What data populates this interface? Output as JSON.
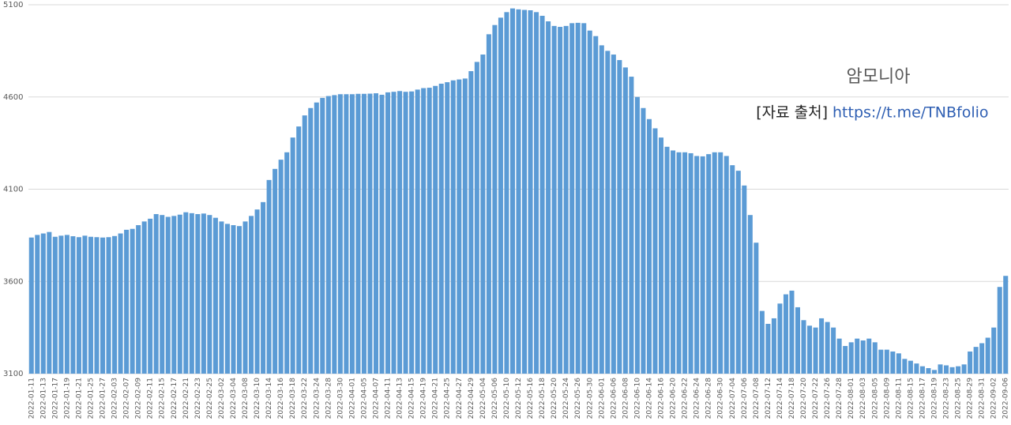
{
  "chart_data": {
    "type": "bar",
    "annotation": {
      "title": "암모니아",
      "source_prefix": "[자료 출처]",
      "source_link": "https://t.me/TNBfolio"
    },
    "categories": [
      "2022-01-11",
      null,
      "2022-01-13",
      null,
      "2022-01-17",
      null,
      "2022-01-19",
      null,
      "2022-01-21",
      null,
      "2022-01-25",
      null,
      "2022-01-27",
      null,
      "2022-02-03",
      null,
      "2022-02-07",
      null,
      "2022-02-09",
      null,
      "2022-02-11",
      null,
      "2022-02-15",
      null,
      "2022-02-17",
      null,
      "2022-02-21",
      null,
      "2022-02-23",
      null,
      "2022-02-25",
      null,
      "2022-03-02",
      null,
      "2022-03-04",
      null,
      "2022-03-08",
      null,
      "2022-03-10",
      null,
      "2022-03-14",
      null,
      "2022-03-16",
      null,
      "2022-03-18",
      null,
      "2022-03-22",
      null,
      "2022-03-24",
      null,
      "2022-03-28",
      null,
      "2022-03-30",
      null,
      "2022-04-01",
      null,
      "2022-04-05",
      null,
      "2022-04-07",
      null,
      "2022-04-11",
      null,
      "2022-04-13",
      null,
      "2022-04-15",
      null,
      "2022-04-19",
      null,
      "2022-04-21",
      null,
      "2022-04-25",
      null,
      "2022-04-27",
      null,
      "2022-04-29",
      null,
      "2022-05-04",
      null,
      "2022-05-06",
      null,
      "2022-05-10",
      null,
      "2022-05-12",
      null,
      "2022-05-16",
      null,
      "2022-05-18",
      null,
      "2022-05-20",
      null,
      "2022-05-24",
      null,
      "2022-05-26",
      null,
      "2022-05-30",
      null,
      "2022-06-01",
      null,
      "2022-06-06",
      null,
      "2022-06-08",
      null,
      "2022-06-10",
      null,
      "2022-06-14",
      null,
      "2022-06-16",
      null,
      "2022-06-20",
      null,
      "2022-06-22",
      null,
      "2022-06-24",
      null,
      "2022-06-28",
      null,
      "2022-06-30",
      null,
      "2022-07-04",
      null,
      "2022-07-06",
      null,
      "2022-07-08",
      null,
      "2022-07-12",
      null,
      "2022-07-14",
      null,
      "2022-07-18",
      null,
      "2022-07-20",
      null,
      "2022-07-22",
      null,
      "2022-07-26",
      null,
      "2022-07-28",
      null,
      "2022-08-01",
      null,
      "2022-08-03",
      null,
      "2022-08-05",
      null,
      "2022-08-09",
      null,
      "2022-08-11",
      null,
      "2022-08-15",
      null,
      "2022-08-17",
      null,
      "2022-08-19",
      null,
      "2022-08-23",
      null,
      "2022-08-25",
      null,
      "2022-08-29",
      null,
      "2022-08-31",
      null,
      "2022-09-02",
      null,
      "2022-09-06"
    ],
    "values": [
      3838,
      3852,
      3860,
      3868,
      3842,
      3848,
      3852,
      3845,
      3840,
      3848,
      3842,
      3840,
      3838,
      3840,
      3846,
      3860,
      3880,
      3885,
      3905,
      3925,
      3940,
      3965,
      3960,
      3950,
      3955,
      3962,
      3975,
      3970,
      3965,
      3968,
      3960,
      3945,
      3925,
      3912,
      3905,
      3900,
      3925,
      3955,
      3990,
      4030,
      4150,
      4210,
      4260,
      4300,
      4380,
      4440,
      4500,
      4540,
      4570,
      4595,
      4605,
      4610,
      4615,
      4615,
      4615,
      4617,
      4617,
      4618,
      4620,
      4612,
      4625,
      4628,
      4632,
      4628,
      4630,
      4640,
      4648,
      4650,
      4660,
      4672,
      4680,
      4690,
      4695,
      4700,
      4740,
      4790,
      4830,
      4940,
      4990,
      5030,
      5060,
      5080,
      5075,
      5072,
      5070,
      5060,
      5040,
      5010,
      4985,
      4980,
      4985,
      5000,
      5002,
      5000,
      4960,
      4930,
      4880,
      4850,
      4830,
      4800,
      4760,
      4710,
      4600,
      4540,
      4480,
      4430,
      4380,
      4330,
      4310,
      4300,
      4300,
      4295,
      4280,
      4278,
      4290,
      4300,
      4300,
      4280,
      4230,
      4200,
      4120,
      3960,
      3810,
      3440,
      3370,
      3400,
      3480,
      3530,
      3550,
      3460,
      3390,
      3360,
      3350,
      3400,
      3380,
      3350,
      3290,
      3250,
      3270,
      3290,
      3280,
      3290,
      3270,
      3230,
      3230,
      3220,
      3210,
      3180,
      3170,
      3155,
      3140,
      3130,
      3120,
      3150,
      3145,
      3135,
      3140,
      3150,
      3220,
      3245,
      3265,
      3295,
      3350,
      3570,
      3630
    ],
    "color": "#5b9bd5",
    "ylim": [
      3100,
      5100
    ],
    "yticks": [
      3100,
      3600,
      4100,
      4600,
      5100
    ],
    "grid": true
  }
}
